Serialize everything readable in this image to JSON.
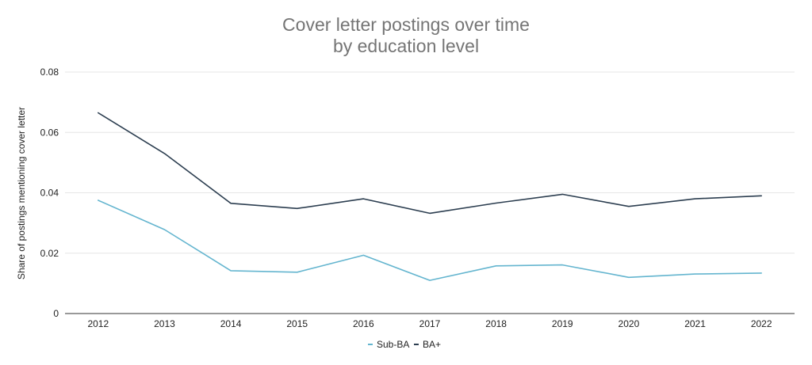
{
  "chart_data": {
    "type": "line",
    "title": "Cover letter postings over time",
    "subtitle": "by education level",
    "xlabel": "",
    "ylabel": "Share of postings mentioning cover letter",
    "categories": [
      "2012",
      "2013",
      "2014",
      "2015",
      "2016",
      "2017",
      "2018",
      "2019",
      "2020",
      "2021",
      "2022"
    ],
    "series": [
      {
        "name": "Sub-BA",
        "color": "#64b5cf",
        "values": [
          0.0375,
          0.0278,
          0.0142,
          0.0137,
          0.0193,
          0.011,
          0.0158,
          0.0161,
          0.012,
          0.0131,
          0.0134
        ]
      },
      {
        "name": "BA+",
        "color": "#2c3e50",
        "values": [
          0.0665,
          0.053,
          0.0365,
          0.0348,
          0.038,
          0.0332,
          0.0366,
          0.0395,
          0.0355,
          0.038,
          0.039
        ]
      }
    ],
    "ylim": [
      0,
      0.08
    ],
    "yticks": [
      "0",
      "0.02",
      "0.04",
      "0.06",
      "0.08"
    ],
    "grid": true,
    "legend": "bottom"
  }
}
